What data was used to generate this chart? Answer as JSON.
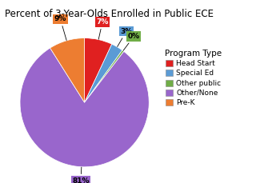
{
  "title": "Percent of 3-Year-Olds Enrolled in Public ECE",
  "slices": [
    7,
    3,
    0.5,
    81,
    9
  ],
  "display_labels": [
    "7%",
    "3%",
    "0%",
    "81%",
    "9%"
  ],
  "colors": [
    "#e02020",
    "#5b9bd5",
    "#70ad47",
    "#9966cc",
    "#ed7d31"
  ],
  "legend_labels": [
    "Head Start",
    "Special Ed",
    "Other public",
    "Other/None",
    "Pre-K"
  ],
  "legend_title": "Program Type",
  "startangle": 90,
  "bg_color": "#ffffff",
  "title_fontsize": 8.5,
  "label_fontsize": 6.5,
  "legend_fontsize": 6.5,
  "legend_title_fontsize": 7.5
}
